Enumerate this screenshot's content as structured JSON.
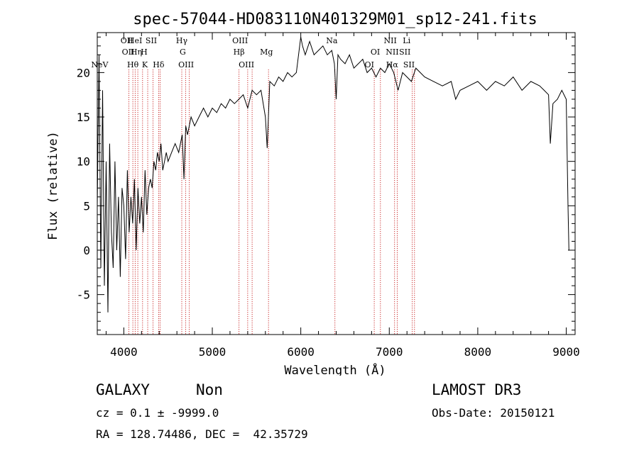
{
  "chart_data": {
    "type": "line",
    "title": "spec-57044-HD083110N401329M01_sp12-241.fits",
    "xlabel": "Wavelength (Å)",
    "ylabel": "Flux (relative)",
    "xlim": [
      3700,
      9100
    ],
    "ylim": [
      -9.5,
      24.5
    ],
    "xticks": [
      4000,
      5000,
      6000,
      7000,
      8000,
      9000
    ],
    "yticks": [
      -5,
      0,
      5,
      10,
      15,
      20
    ],
    "grid": false,
    "series": [
      {
        "x": [
          3700,
          3720,
          3740,
          3760,
          3780,
          3800,
          3820,
          3840,
          3860,
          3880,
          3900,
          3920,
          3940,
          3960,
          3980,
          4000,
          4020,
          4040,
          4060,
          4080,
          4100,
          4120,
          4140,
          4160,
          4180,
          4200,
          4220,
          4240,
          4260,
          4280,
          4300,
          4320,
          4340,
          4360,
          4380,
          4400,
          4420,
          4440,
          4460,
          4480,
          4500,
          4540,
          4580,
          4620,
          4660,
          4680,
          4700,
          4720,
          4760,
          4800,
          4850,
          4900,
          4950,
          5000,
          5050,
          5100,
          5150,
          5200,
          5250,
          5300,
          5350,
          5400,
          5450,
          5500,
          5550,
          5600,
          5620,
          5650,
          5700,
          5750,
          5800,
          5850,
          5900,
          5950,
          6000,
          6020,
          6050,
          6100,
          6150,
          6200,
          6250,
          6300,
          6350,
          6380,
          6400,
          6420,
          6450,
          6500,
          6550,
          6600,
          6650,
          6700,
          6750,
          6800,
          6850,
          6900,
          6950,
          7000,
          7050,
          7100,
          7150,
          7200,
          7250,
          7300,
          7400,
          7500,
          7600,
          7700,
          7750,
          7800,
          7900,
          8000,
          8100,
          8200,
          8300,
          8400,
          8500,
          8600,
          8700,
          8750,
          8800,
          8820,
          8850,
          8900,
          8950,
          9000,
          9020,
          9030
        ],
        "y": [
          5,
          22,
          -2,
          18,
          -4,
          10,
          -7,
          12,
          2,
          -2,
          10,
          0,
          6,
          -3,
          7,
          5,
          -1,
          9,
          2,
          6,
          3,
          8,
          0,
          7,
          3,
          6,
          2,
          9,
          4,
          7,
          8,
          7,
          10,
          9,
          11,
          10,
          12,
          9,
          10,
          11,
          10,
          11,
          12,
          11,
          13,
          8,
          14,
          13,
          15,
          14,
          15,
          16,
          15,
          16,
          15.5,
          16.5,
          16,
          17,
          16.5,
          17,
          17.5,
          16,
          18,
          17.5,
          18,
          15,
          11.5,
          19,
          18.5,
          19.5,
          19,
          20,
          19.5,
          20,
          24,
          23,
          22,
          23.5,
          22,
          22.5,
          23,
          22,
          22.5,
          21,
          17,
          22,
          21.5,
          21,
          22,
          20.5,
          21,
          21.5,
          20,
          20.5,
          19.5,
          20.5,
          20,
          21,
          20,
          18,
          20,
          19.5,
          19,
          20.5,
          19.5,
          19,
          18.5,
          19,
          17,
          18,
          18.5,
          19,
          18,
          19,
          18.5,
          19.5,
          18,
          19,
          18.5,
          18,
          17.5,
          12,
          16.5,
          17,
          18,
          17,
          5,
          0
        ]
      }
    ],
    "lines": [
      {
        "wl": 3727,
        "label": "NeV",
        "tier": 2
      },
      {
        "wl": 4034,
        "label": "OII",
        "tier": 0
      },
      {
        "wl": 4049,
        "label": "OII",
        "tier": 1
      },
      {
        "wl": 4102,
        "label": "Hθ",
        "tier": 2
      },
      {
        "wl": 4126,
        "label": "HeI",
        "tier": 0
      },
      {
        "wl": 4141,
        "label": "Hη",
        "tier": 1
      },
      {
        "wl": 4229,
        "label": "H",
        "tier": 1
      },
      {
        "wl": 4237,
        "label": "K",
        "tier": 2
      },
      {
        "wl": 4310,
        "label": "SII",
        "tier": 0
      },
      {
        "wl": 4393,
        "label": "Hδ",
        "tier": 2
      },
      {
        "wl": 4655,
        "label": "Hγ",
        "tier": 0
      },
      {
        "wl": 4666,
        "label": "G",
        "tier": 1
      },
      {
        "wl": 4704,
        "label": "OIII",
        "tier": 2
      },
      {
        "wl": 5302,
        "label": "Hβ",
        "tier": 1
      },
      {
        "wl": 5314,
        "label": "OIII",
        "tier": 0
      },
      {
        "wl": 5386,
        "label": "OIII",
        "tier": 2
      },
      {
        "wl": 5612,
        "label": "Mg",
        "tier": 1
      },
      {
        "wl": 6351,
        "label": "Na",
        "tier": 0
      },
      {
        "wl": 6842,
        "label": "OI",
        "tier": 1
      },
      {
        "wl": 6775,
        "label": "OI",
        "tier": 2
      },
      {
        "wl": 7011,
        "label": "NII",
        "tier": 0
      },
      {
        "wl": 7033,
        "label": "NII",
        "tier": 1
      },
      {
        "wl": 7032,
        "label": "Hα",
        "tier": 2
      },
      {
        "wl": 7196,
        "label": "Li",
        "tier": 0
      },
      {
        "wl": 7176,
        "label": "SII",
        "tier": 1
      },
      {
        "wl": 7222,
        "label": "SII",
        "tier": 2
      }
    ],
    "line_marks_wl": [
      4058,
      4102,
      4128,
      4158,
      4212,
      4270,
      4330,
      4393,
      4410,
      4655,
      4700,
      4740,
      5302,
      5400,
      5450,
      5635,
      6386,
      6830,
      6900,
      7060,
      7090,
      7260,
      7285
    ]
  },
  "info": {
    "class_label": "GALAXY",
    "subclass_label": "Non",
    "survey": "LAMOST DR3",
    "cz": "cz = 0.1 ± -9999.0",
    "obs_date": "Obs-Date: 20150121",
    "radec": "RA = 128.74486, DEC =  42.35729"
  }
}
